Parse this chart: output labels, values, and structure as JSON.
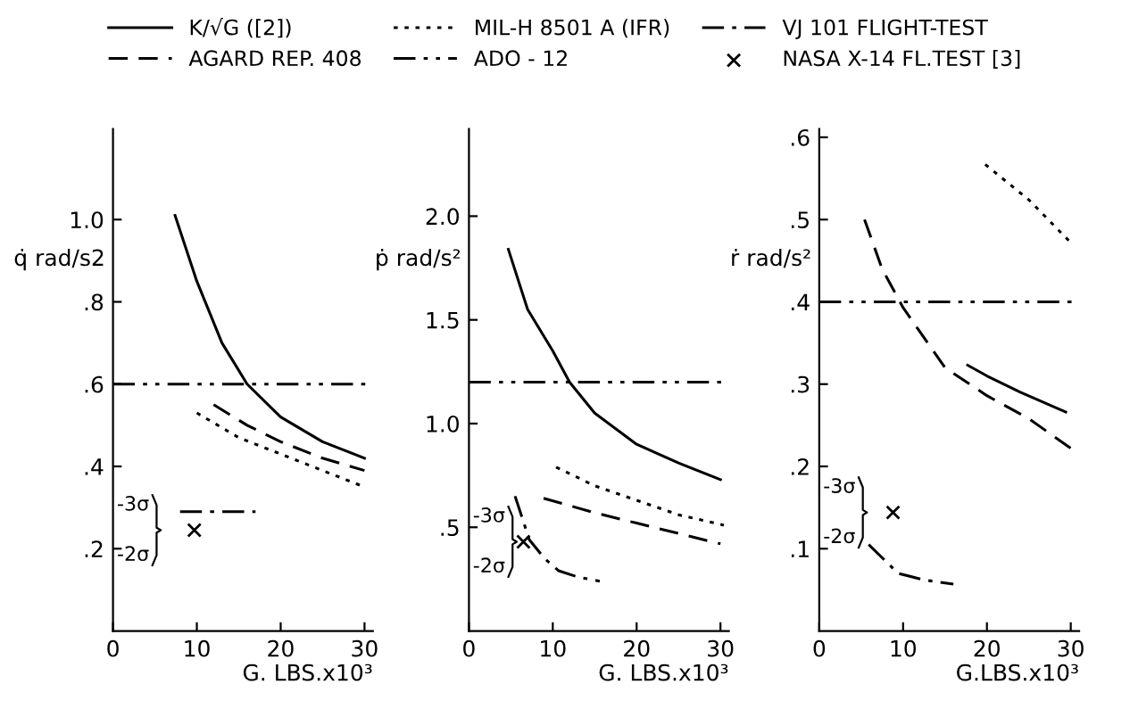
{
  "chart_data": [
    {
      "type": "line",
      "ylabel": "q̇ rad/s2",
      "xlabel": "G. LBS.x10³",
      "xlim": [
        0,
        31
      ],
      "xticks": [
        0,
        10,
        20,
        30
      ],
      "ylim": [
        0,
        1.22
      ],
      "yticks": [
        {
          "value": 0.2,
          "label": ".2"
        },
        {
          "value": 0.4,
          "label": ".4"
        },
        {
          "value": 0.6,
          "label": ".6"
        },
        {
          "value": 0.8,
          "label": ".8"
        },
        {
          "value": 1.0,
          "label": "1.0"
        }
      ],
      "grid": false,
      "legend": "top",
      "series": [
        {
          "name": "K/√G ([2])",
          "color": "#000000",
          "line_style": "solid",
          "x": [
            7.4,
            10,
            13,
            16,
            20,
            25,
            30
          ],
          "values": [
            1.01,
            0.85,
            0.7,
            0.6,
            0.52,
            0.46,
            0.42
          ]
        },
        {
          "name": "AGARD REP. 408",
          "color": "#000000",
          "line_style": "dashed",
          "x": [
            12,
            16,
            20,
            25,
            30
          ],
          "values": [
            0.55,
            0.5,
            0.46,
            0.42,
            0.39
          ]
        },
        {
          "name": "MIL-H 8501 A (IFR)",
          "color": "#000000",
          "line_style": "dotted",
          "x": [
            10,
            15,
            20,
            25,
            30
          ],
          "values": [
            0.53,
            0.47,
            0.43,
            0.39,
            0.35
          ]
        },
        {
          "name": "ADO - 12",
          "color": "#000000",
          "line_style": "dashdotdot",
          "x": [
            0,
            31
          ],
          "values": [
            0.6,
            0.6
          ]
        },
        {
          "name": "VJ 101 FLIGHT-TEST",
          "color": "#000000",
          "line_style": "dashdot",
          "x": [
            8,
            17
          ],
          "values": [
            0.29,
            0.29
          ]
        },
        {
          "name": "NASA X-14 FL.TEST [3]",
          "type": "scatter",
          "marker": "cross",
          "color": "#000000",
          "x": [
            9.7
          ],
          "values": [
            0.245
          ]
        }
      ],
      "annotations": [
        "-3σ",
        "-2σ"
      ]
    },
    {
      "type": "line",
      "ylabel": "ṗ rad/s²",
      "xlabel": "G. LBS.x10³",
      "xlim": [
        0,
        31
      ],
      "xticks": [
        0,
        10,
        20,
        30
      ],
      "ylim": [
        0,
        2.42
      ],
      "yticks": [
        {
          "value": 0.5,
          "label": ".5"
        },
        {
          "value": 1.0,
          "label": "1.0"
        },
        {
          "value": 1.5,
          "label": "1.5"
        },
        {
          "value": 2.0,
          "label": "2.0"
        }
      ],
      "grid": false,
      "series": [
        {
          "color": "#000000",
          "line_style": "solid",
          "x": [
            4.7,
            7,
            10,
            12,
            15,
            20,
            25,
            30
          ],
          "values": [
            1.84,
            1.55,
            1.35,
            1.2,
            1.05,
            0.9,
            0.81,
            0.73
          ]
        },
        {
          "color": "#000000",
          "line_style": "dashed",
          "x": [
            8.9,
            15,
            20,
            25,
            30
          ],
          "values": [
            0.64,
            0.57,
            0.52,
            0.47,
            0.42
          ]
        },
        {
          "color": "#000000",
          "line_style": "dotted",
          "x": [
            10.4,
            15,
            20,
            25,
            30.4
          ],
          "values": [
            0.79,
            0.7,
            0.63,
            0.56,
            0.51
          ]
        },
        {
          "color": "#000000",
          "line_style": "dashdotdot",
          "x": [
            0,
            31
          ],
          "values": [
            1.2,
            1.2
          ]
        },
        {
          "color": "#000000",
          "line_style": "dashdot",
          "x": [
            5.5,
            7.2,
            9,
            10.7,
            13,
            15.6
          ],
          "values": [
            0.65,
            0.44,
            0.35,
            0.29,
            0.26,
            0.24
          ]
        },
        {
          "type": "scatter",
          "marker": "cross",
          "color": "#000000",
          "x": [
            6.5
          ],
          "values": [
            0.43
          ]
        }
      ],
      "annotations": [
        "-3σ",
        "-2σ"
      ]
    },
    {
      "type": "line",
      "ylabel": "ṙ rad/s²",
      "xlabel": "G.LBS.x10³",
      "xlim": [
        0,
        31
      ],
      "xticks": [
        0,
        10,
        20,
        30
      ],
      "ylim": [
        0,
        0.61
      ],
      "yticks": [
        {
          "value": 0.1,
          "label": ".1"
        },
        {
          "value": 0.2,
          "label": ".2"
        },
        {
          "value": 0.3,
          "label": ".3"
        },
        {
          "value": 0.4,
          "label": ".4"
        },
        {
          "value": 0.5,
          "label": ".5"
        },
        {
          "value": 0.6,
          "label": ".6"
        }
      ],
      "grid": false,
      "series": [
        {
          "color": "#000000",
          "line_style": "solid",
          "x": [
            17.7,
            20,
            24,
            29.4
          ],
          "values": [
            0.323,
            0.31,
            0.29,
            0.266
          ]
        },
        {
          "color": "#000000",
          "line_style": "dashed",
          "x": [
            5.4,
            7.5,
            10,
            15,
            20,
            25,
            30
          ],
          "values": [
            0.5,
            0.44,
            0.393,
            0.32,
            0.286,
            0.258,
            0.222
          ]
        },
        {
          "color": "#000000",
          "line_style": "dotted",
          "x": [
            19.8,
            25,
            30
          ],
          "values": [
            0.567,
            0.524,
            0.472
          ]
        },
        {
          "color": "#000000",
          "line_style": "dashdotdot",
          "x": [
            0,
            31
          ],
          "values": [
            0.4,
            0.4
          ]
        },
        {
          "color": "#000000",
          "line_style": "dashdot",
          "x": [
            5.9,
            9.4,
            12.5,
            16
          ],
          "values": [
            0.105,
            0.07,
            0.062,
            0.057
          ]
        },
        {
          "type": "scatter",
          "marker": "cross",
          "color": "#000000",
          "x": [
            8.8
          ],
          "values": [
            0.144
          ]
        }
      ],
      "annotations": [
        "-3σ",
        "-2σ"
      ]
    }
  ]
}
